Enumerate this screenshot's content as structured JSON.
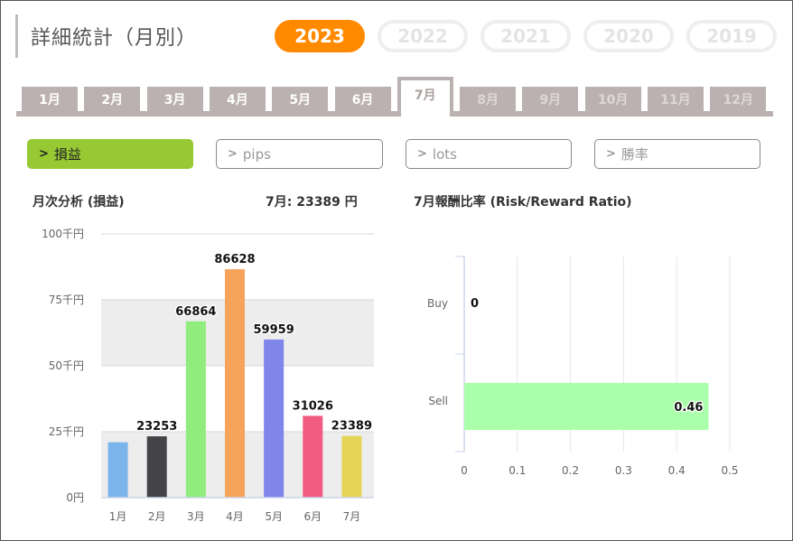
{
  "title": "詳細統計（月別）",
  "years": [
    {
      "label": "2023",
      "active": true
    },
    {
      "label": "2022",
      "active": false
    },
    {
      "label": "2021",
      "active": false
    },
    {
      "label": "2020",
      "active": false
    },
    {
      "label": "2019",
      "active": false
    }
  ],
  "months": [
    {
      "label": "1月",
      "state": "past"
    },
    {
      "label": "2月",
      "state": "past"
    },
    {
      "label": "3月",
      "state": "past"
    },
    {
      "label": "4月",
      "state": "past"
    },
    {
      "label": "5月",
      "state": "past"
    },
    {
      "label": "6月",
      "state": "past"
    },
    {
      "label": "7月",
      "state": "active"
    },
    {
      "label": "8月",
      "state": "future"
    },
    {
      "label": "9月",
      "state": "future"
    },
    {
      "label": "10月",
      "state": "future"
    },
    {
      "label": "11月",
      "state": "future"
    },
    {
      "label": "12月",
      "state": "future"
    }
  ],
  "filters": [
    {
      "label": "損益",
      "active": true,
      "icon": "chevron-right-icon"
    },
    {
      "label": "pips",
      "active": false,
      "icon": "chevron-right-icon"
    },
    {
      "label": "lots",
      "active": false,
      "icon": "chevron-right-icon"
    },
    {
      "label": "勝率",
      "active": false,
      "icon": "chevron-right-icon"
    }
  ],
  "monthly": {
    "heading": "月次分析 (損益)",
    "summary": "7月:  23389 円"
  },
  "ratio": {
    "heading": "7月報酬比率 (Risk/Reward Ratio)"
  },
  "colors": {
    "accent_orange": "#ff8a00",
    "accent_green": "#97c933",
    "tab_gray": "#bab1b0"
  },
  "chart_data": [
    {
      "type": "bar",
      "categories": [
        "1月",
        "2月",
        "3月",
        "4月",
        "5月",
        "6月",
        "7月"
      ],
      "values": [
        21000,
        23253,
        66864,
        86628,
        59959,
        31026,
        23389
      ],
      "data_labels": [
        "",
        "23253",
        "66864",
        "86628",
        "59959",
        "31026",
        "23389"
      ],
      "colors": [
        "#7cb5ec",
        "#434348",
        "#90ed7d",
        "#f7a35c",
        "#8085e9",
        "#f15c80",
        "#e4d354"
      ],
      "ylim": [
        0,
        100000
      ],
      "yticks": [
        0,
        25000,
        50000,
        75000,
        100000
      ],
      "ytick_labels": [
        "0円",
        "25千円",
        "50千円",
        "75千円",
        "100千円"
      ],
      "grid": true
    },
    {
      "type": "bar",
      "orientation": "horizontal",
      "categories": [
        "Buy",
        "Sell"
      ],
      "values": [
        0,
        0.46
      ],
      "data_labels": [
        "0",
        "0.46"
      ],
      "color": "#aaffaa",
      "xlim": [
        0,
        0.5
      ],
      "xticks": [
        0,
        0.1,
        0.2,
        0.3,
        0.4,
        0.5
      ],
      "xtick_labels": [
        "0",
        "0.1",
        "0.2",
        "0.3",
        "0.4",
        "0.5"
      ],
      "grid": true
    }
  ]
}
